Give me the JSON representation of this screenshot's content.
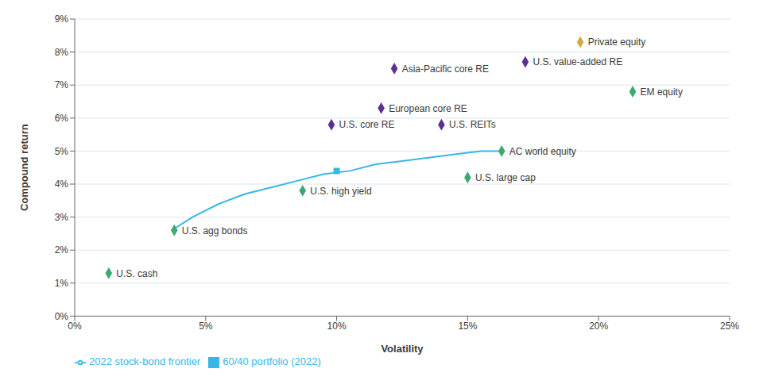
{
  "chart_data": {
    "type": "scatter",
    "xlabel": "Volatility",
    "ylabel": "Compound return",
    "xlim": [
      0,
      0.25
    ],
    "ylim": [
      0,
      0.09
    ],
    "xticks": [
      {
        "value": 0,
        "label": "0%"
      },
      {
        "value": 0.05,
        "label": "5%"
      },
      {
        "value": 0.1,
        "label": "10%"
      },
      {
        "value": 0.15,
        "label": "15%"
      },
      {
        "value": 0.2,
        "label": "20%"
      },
      {
        "value": 0.25,
        "label": "25%"
      }
    ],
    "yticks": [
      {
        "value": 0,
        "label": "0%"
      },
      {
        "value": 0.01,
        "label": "1%"
      },
      {
        "value": 0.02,
        "label": "2%"
      },
      {
        "value": 0.03,
        "label": "3%"
      },
      {
        "value": 0.04,
        "label": "4%"
      },
      {
        "value": 0.05,
        "label": "5%"
      },
      {
        "value": 0.06,
        "label": "6%"
      },
      {
        "value": 0.07,
        "label": "7%"
      },
      {
        "value": 0.08,
        "label": "8%"
      },
      {
        "value": 0.09,
        "label": "9%"
      }
    ],
    "grid": "y",
    "legend": "lower left",
    "series": [
      {
        "name": "2022 stock-bond frontier",
        "type": "line",
        "color": "#38b6e8",
        "x": [
          0.037,
          0.045,
          0.055,
          0.065,
          0.075,
          0.085,
          0.095,
          0.105,
          0.115,
          0.125,
          0.135,
          0.145,
          0.155,
          0.162
        ],
        "values": [
          0.026,
          0.03,
          0.034,
          0.037,
          0.039,
          0.041,
          0.043,
          0.044,
          0.046,
          0.047,
          0.048,
          0.049,
          0.05,
          0.05
        ]
      },
      {
        "name": "60/40 portfolio (2022)",
        "type": "scatter",
        "marker": "square",
        "color": "#38b6e8",
        "x": [
          0.1
        ],
        "values": [
          0.044
        ]
      }
    ],
    "points": [
      {
        "label": "U.S. cash",
        "x": 0.013,
        "y": 0.013,
        "color": "#3aaa6e",
        "marker": "diamond"
      },
      {
        "label": "U.S. agg bonds",
        "x": 0.038,
        "y": 0.026,
        "color": "#3aaa6e",
        "marker": "diamond"
      },
      {
        "label": "U.S. high yield",
        "x": 0.087,
        "y": 0.038,
        "color": "#3aaa6e",
        "marker": "diamond"
      },
      {
        "label": "U.S. large cap",
        "x": 0.15,
        "y": 0.042,
        "color": "#3aaa6e",
        "marker": "diamond"
      },
      {
        "label": "AC world equity",
        "x": 0.163,
        "y": 0.05,
        "color": "#3aaa6e",
        "marker": "diamond"
      },
      {
        "label": "EM equity",
        "x": 0.213,
        "y": 0.068,
        "color": "#3aaa6e",
        "marker": "diamond"
      },
      {
        "label": "U.S. core RE",
        "x": 0.098,
        "y": 0.058,
        "color": "#5a3091",
        "marker": "diamond"
      },
      {
        "label": "European core RE",
        "x": 0.117,
        "y": 0.063,
        "color": "#5a3091",
        "marker": "diamond"
      },
      {
        "label": "Asia-Pacific core RE",
        "x": 0.122,
        "y": 0.075,
        "color": "#5a3091",
        "marker": "diamond"
      },
      {
        "label": "U.S. REITs",
        "x": 0.14,
        "y": 0.058,
        "color": "#5a3091",
        "marker": "diamond"
      },
      {
        "label": "U.S. value-added RE",
        "x": 0.172,
        "y": 0.077,
        "color": "#5a3091",
        "marker": "diamond"
      },
      {
        "label": "Private equity",
        "x": 0.193,
        "y": 0.083,
        "color": "#d4aa3c",
        "marker": "diamond"
      }
    ]
  }
}
